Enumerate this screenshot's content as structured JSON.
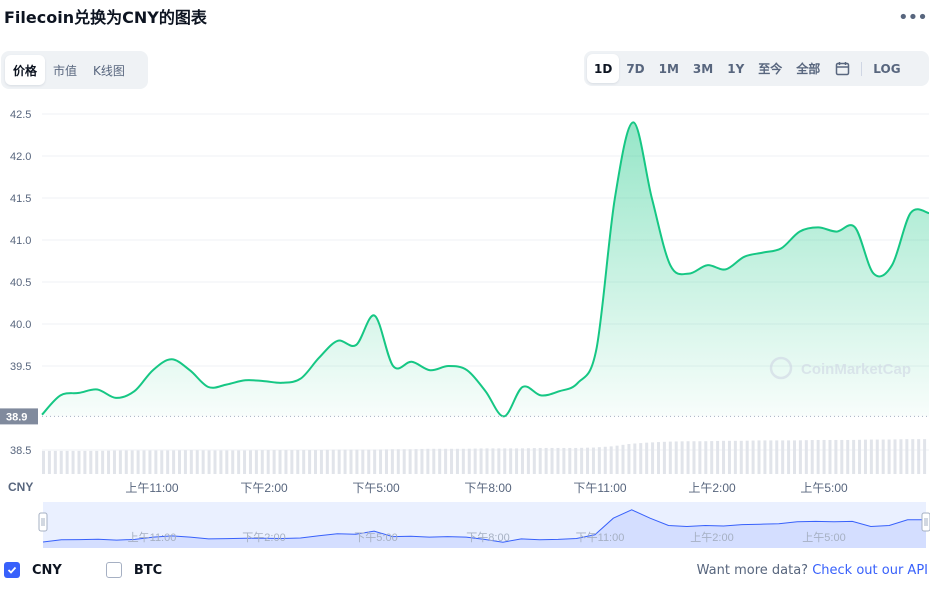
{
  "header": {
    "title": "Filecoin兑换为CNY的图表",
    "more_label": "•••"
  },
  "view_tabs": [
    {
      "label": "价格",
      "active": true
    },
    {
      "label": "市值",
      "active": false
    },
    {
      "label": "K线图",
      "active": false
    }
  ],
  "range_tabs": [
    {
      "label": "1D",
      "active": true
    },
    {
      "label": "7D",
      "active": false
    },
    {
      "label": "1M",
      "active": false
    },
    {
      "label": "3M",
      "active": false
    },
    {
      "label": "1Y",
      "active": false
    },
    {
      "label": "至今",
      "active": false
    },
    {
      "label": "全部",
      "active": false
    }
  ],
  "log_label": "LOG",
  "watermark": "CoinMarketCap",
  "legend": [
    {
      "label": "CNY",
      "checked": true
    },
    {
      "label": "BTC",
      "checked": false
    }
  ],
  "footer": {
    "prefix": "Want more data?",
    "link": "Check out our API"
  },
  "colors": {
    "line": "#16c784",
    "down": "#ea3943",
    "accent": "#3861fb",
    "volume": "#e1e4ea",
    "navigator_line": "#3861fb"
  },
  "chart_data": {
    "type": "area",
    "currency_label": "CNY",
    "ylim": [
      38.5,
      42.5
    ],
    "yticks": [
      "42.5",
      "42.0",
      "41.5",
      "41.0",
      "40.5",
      "40.0",
      "39.5",
      "38.5"
    ],
    "start_price_label": "38.9",
    "start_price": 38.9,
    "x_labels": [
      "上午11:00",
      "下午2:00",
      "下午5:00",
      "下午8:00",
      "下午11:00",
      "上午2:00",
      "上午5:00"
    ],
    "x": [
      "上午8:30",
      "上午9:00",
      "上午9:30",
      "上午10:00",
      "上午10:30",
      "上午11:00",
      "上午11:30",
      "下午12:00",
      "下午12:30",
      "下午1:00",
      "下午1:30",
      "下午2:00",
      "下午2:30",
      "下午3:00",
      "下午3:30",
      "下午4:00",
      "下午4:30",
      "下午5:00",
      "下午5:30",
      "下午6:00",
      "下午6:30",
      "下午7:00",
      "下午7:30",
      "下午8:00",
      "下午8:30",
      "下午9:00",
      "下午9:30",
      "下午10:00",
      "下午10:30",
      "下午11:00",
      "下午11:30",
      "上午12:00",
      "上午12:30",
      "上午1:00",
      "上午1:30",
      "上午2:00",
      "上午2:30",
      "上午3:00",
      "上午3:30",
      "上午4:00",
      "上午4:30",
      "上午5:00",
      "上午5:30",
      "上午6:00",
      "上午6:30",
      "上午7:00",
      "上午7:30",
      "上午8:00",
      "上午8:20"
    ],
    "values": [
      38.92,
      39.15,
      39.18,
      39.22,
      39.12,
      39.2,
      39.45,
      39.58,
      39.45,
      39.25,
      39.28,
      39.33,
      39.32,
      39.3,
      39.35,
      39.6,
      39.8,
      39.75,
      40.1,
      39.5,
      39.55,
      39.45,
      39.5,
      39.45,
      39.2,
      38.9,
      39.25,
      39.15,
      39.2,
      39.3,
      39.7,
      41.5,
      42.4,
      41.5,
      40.7,
      40.6,
      40.7,
      40.65,
      40.8,
      40.85,
      40.9,
      41.1,
      41.15,
      41.1,
      41.15,
      40.6,
      40.7,
      41.32,
      41.32
    ],
    "volume": [
      0.55,
      0.55,
      0.55,
      0.55,
      0.56,
      0.56,
      0.56,
      0.56,
      0.57,
      0.56,
      0.56,
      0.56,
      0.57,
      0.57,
      0.57,
      0.57,
      0.58,
      0.58,
      0.58,
      0.59,
      0.59,
      0.6,
      0.6,
      0.6,
      0.61,
      0.61,
      0.61,
      0.62,
      0.62,
      0.62,
      0.63,
      0.66,
      0.72,
      0.75,
      0.77,
      0.78,
      0.78,
      0.79,
      0.79,
      0.8,
      0.8,
      0.8,
      0.81,
      0.81,
      0.81,
      0.82,
      0.82,
      0.83,
      0.83
    ]
  }
}
